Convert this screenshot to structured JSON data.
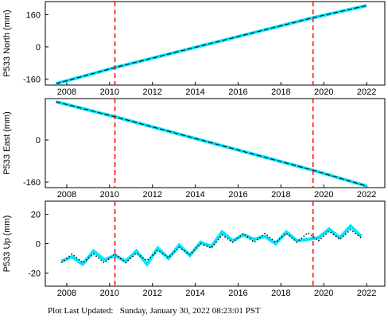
{
  "chart_data": [
    {
      "type": "line",
      "ylabel": "P533 North (mm)",
      "x": [
        2007.5,
        2010.25,
        2019.5,
        2022.0
      ],
      "xlim": [
        2007,
        2022.85
      ],
      "xticks": [
        2008,
        2010,
        2012,
        2014,
        2016,
        2018,
        2020,
        2022
      ],
      "ylim": [
        -190,
        225
      ],
      "yticks": [
        -160,
        0,
        160
      ],
      "vlines": [
        2010.25,
        2019.5
      ],
      "vline_color": "#ff0000",
      "series": [
        {
          "color": "#00e5ff",
          "overlay_color": "#000000",
          "values": [
            -183,
            -103,
            145,
            205
          ]
        }
      ]
    },
    {
      "type": "line",
      "ylabel": "P533 East (mm)",
      "x": [
        2007.5,
        2010.25,
        2019.5,
        2022.0
      ],
      "xlim": [
        2007,
        2022.85
      ],
      "xticks": [
        2008,
        2010,
        2012,
        2014,
        2016,
        2018,
        2020,
        2022
      ],
      "ylim": [
        -181,
        157
      ],
      "yticks": [
        -160,
        0
      ],
      "vlines": [
        2010.25,
        2019.5
      ],
      "vline_color": "#ff0000",
      "series": [
        {
          "color": "#00e5ff",
          "overlay_color": "#000000",
          "values": [
            145,
            88,
            -115,
            -175
          ]
        }
      ]
    },
    {
      "type": "line",
      "ylabel": "P533 Up (mm)",
      "x": [
        2007.75,
        2008.25,
        2008.75,
        2009.25,
        2009.75,
        2010.25,
        2010.75,
        2011.25,
        2011.75,
        2012.25,
        2012.75,
        2013.25,
        2013.75,
        2014.25,
        2014.75,
        2015.25,
        2015.75,
        2016.25,
        2016.75,
        2017.25,
        2017.75,
        2018.25,
        2018.75,
        2019.25,
        2019.75,
        2020.25,
        2020.75,
        2021.25,
        2021.75
      ],
      "xlim": [
        2007,
        2022.85
      ],
      "xticks": [
        2008,
        2010,
        2012,
        2014,
        2016,
        2018,
        2020,
        2022
      ],
      "ylim": [
        -29,
        29
      ],
      "yticks": [
        -20,
        0,
        20
      ],
      "vlines": [
        2010.25,
        2019.5
      ],
      "vline_color": "#ff0000",
      "series": [
        {
          "color": "#00e5ff",
          "values": [
            -12,
            -9,
            -14,
            -5,
            -11,
            -8,
            -12,
            -5,
            -14,
            -3,
            -10,
            -1,
            -8,
            1,
            -2,
            8,
            2,
            6,
            3,
            5,
            0,
            8,
            2,
            3,
            4,
            10,
            4,
            12,
            5
          ]
        },
        {
          "color": "#000000",
          "dotted": true,
          "values": [
            -13,
            -7,
            -13,
            -7,
            -13,
            -7,
            -13,
            -6.5,
            -11.5,
            -4.5,
            -9.5,
            -2.5,
            -7.5,
            0,
            -3,
            6,
            1,
            7,
            1,
            7,
            1,
            7,
            1,
            7.5,
            2,
            8.5,
            3,
            9.5,
            4
          ]
        }
      ]
    }
  ],
  "footer": "Plot Last Updated:   Sunday, January 30, 2022 08:23:01 PST"
}
